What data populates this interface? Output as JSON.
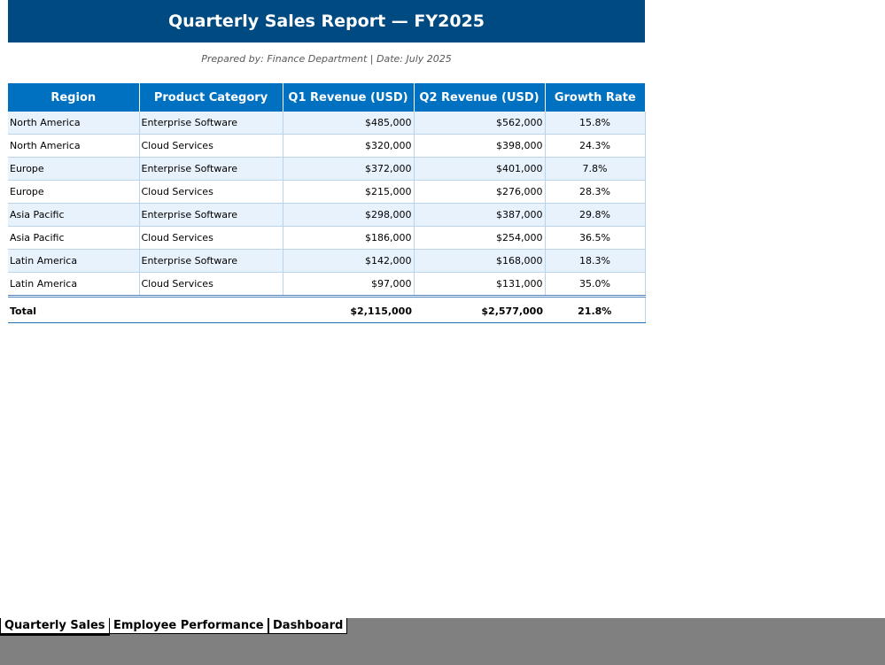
{
  "report": {
    "title": "Quarterly Sales Report — FY2025",
    "subtitle": "Prepared by: Finance Department  |  Date: July 2025"
  },
  "table": {
    "headers": [
      "Region",
      "Product Category",
      "Q1 Revenue (USD)",
      "Q2 Revenue (USD)",
      "Growth Rate"
    ],
    "rows": [
      [
        "North America",
        "Enterprise Software",
        "$485,000",
        "$562,000",
        "15.8%"
      ],
      [
        "North America",
        "Cloud Services",
        "$320,000",
        "$398,000",
        "24.3%"
      ],
      [
        "Europe",
        "Enterprise Software",
        "$372,000",
        "$401,000",
        "7.8%"
      ],
      [
        "Europe",
        "Cloud Services",
        "$215,000",
        "$276,000",
        "28.3%"
      ],
      [
        "Asia Pacific",
        "Enterprise Software",
        "$298,000",
        "$387,000",
        "29.8%"
      ],
      [
        "Asia Pacific",
        "Cloud Services",
        "$186,000",
        "$254,000",
        "36.5%"
      ],
      [
        "Latin America",
        "Enterprise Software",
        "$142,000",
        "$168,000",
        "18.3%"
      ],
      [
        "Latin America",
        "Cloud Services",
        "$97,000",
        "$131,000",
        "35.0%"
      ]
    ],
    "total": {
      "label": "Total",
      "category": "",
      "q1": "$2,115,000",
      "q2": "$2,577,000",
      "growth": "21.8%"
    }
  },
  "tabs": [
    {
      "label": "Quarterly Sales",
      "active": true
    },
    {
      "label": "Employee Performance",
      "active": false
    },
    {
      "label": "Dashboard",
      "active": false
    }
  ],
  "colors": {
    "title_bg": "#004a82",
    "header_bg": "#0070c0",
    "band_row": "#e8f2fc",
    "tabbar_bg": "#808080"
  }
}
